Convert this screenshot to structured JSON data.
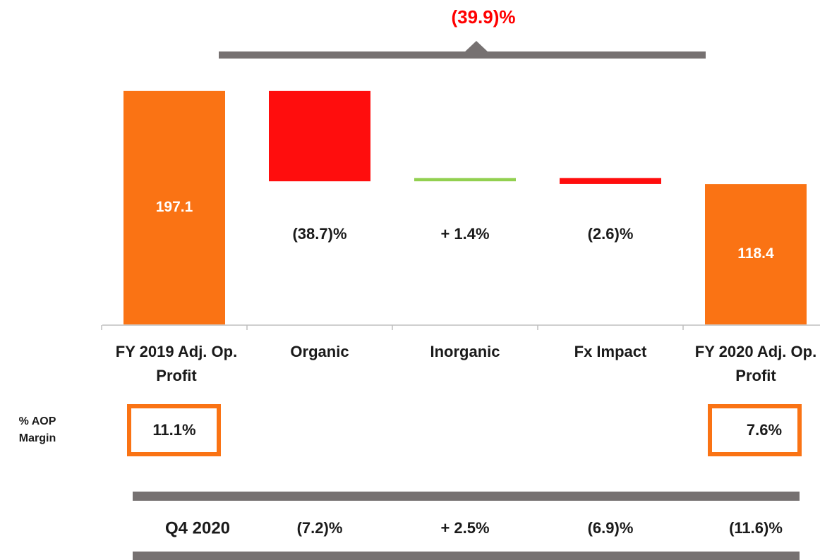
{
  "chart_data": {
    "type": "waterfall",
    "total_change": "(39.9)%",
    "categories": [
      "FY 2019 Adj. Op. Profit",
      "Organic",
      "Inorganic",
      "Fx Impact",
      "FY 2020 Adj. Op. Profit"
    ],
    "measure": [
      "absolute",
      "relative",
      "relative",
      "relative",
      "absolute"
    ],
    "values": [
      197.1,
      -76.3,
      2.8,
      -5.1,
      118.4
    ],
    "change_labels": [
      null,
      "(38.7)%",
      "+ 1.4%",
      "(2.6)%",
      null
    ],
    "colors": [
      "#fa7314",
      "#ff0d0d",
      "#92d050",
      "#ff0d0d",
      "#fa7314"
    ],
    "ylim": [
      0,
      200
    ],
    "margin_label": "% AOP Margin",
    "margins": [
      "11.1%",
      null,
      null,
      null,
      "7.6%"
    ],
    "quarter_label": "Q4 2020",
    "quarter_values": [
      "(7.2)%",
      "+ 2.5%",
      "(6.9)%",
      "(11.6)%"
    ]
  }
}
